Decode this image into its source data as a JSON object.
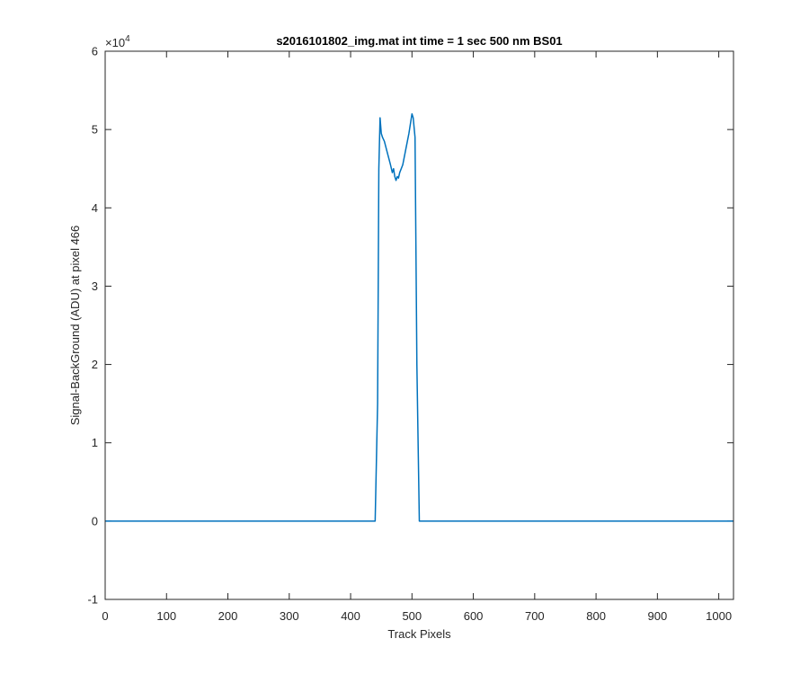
{
  "chart_data": {
    "type": "line",
    "title": "s2016101802_img.mat int time = 1 sec  500 nm BS01",
    "xlabel": "Track Pixels",
    "ylabel": "Signal-BackGround (ADU) at pixel 466",
    "y_exponent_label": "×10",
    "y_exponent_power": "4",
    "xlim": [
      0,
      1024
    ],
    "ylim": [
      -10000,
      60000
    ],
    "x_ticks": [
      0,
      100,
      200,
      300,
      400,
      500,
      600,
      700,
      800,
      900,
      1000
    ],
    "x_tick_labels": [
      "0",
      "100",
      "200",
      "300",
      "400",
      "500",
      "600",
      "700",
      "800",
      "900",
      "1000"
    ],
    "y_ticks": [
      -10000,
      0,
      10000,
      20000,
      30000,
      40000,
      50000,
      60000
    ],
    "y_tick_labels": [
      "-1",
      "0",
      "1",
      "2",
      "3",
      "4",
      "5",
      "6"
    ],
    "grid": false,
    "series": [
      {
        "color": "#0072BD",
        "x": [
          0,
          100,
          200,
          300,
          400,
          440,
          444,
          446,
          448,
          450,
          452,
          455,
          460,
          465,
          468,
          470,
          472,
          474,
          476,
          478,
          480,
          485,
          490,
          495,
          498,
          500,
          502,
          505,
          508,
          512,
          520,
          600,
          700,
          800,
          900,
          1000,
          1024
        ],
        "y": [
          0,
          0,
          0,
          0,
          0,
          0,
          15000,
          45000,
          51500,
          49500,
          49000,
          48500,
          47000,
          45500,
          44500,
          45000,
          44000,
          43500,
          44000,
          43800,
          44500,
          45500,
          47500,
          49500,
          51000,
          52000,
          51500,
          49000,
          20000,
          0,
          0,
          0,
          0,
          0,
          0,
          0,
          0
        ]
      }
    ]
  }
}
